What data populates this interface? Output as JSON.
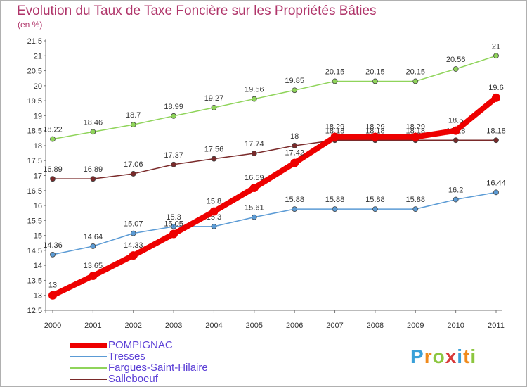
{
  "title": "Evolution du Taux de Taxe Foncière sur les Propriétés Bâties",
  "unit": "(en %)",
  "logo": {
    "text": "Proxiti",
    "letters": [
      "P",
      "r",
      "o",
      "x",
      "i",
      "t",
      "i"
    ],
    "colors": [
      "#3aa0d8",
      "#f08a1c",
      "#8cc63f",
      "#d83a3a",
      "#3aa0d8",
      "#f08a1c",
      "#8cc63f"
    ]
  },
  "chart_data": {
    "type": "line",
    "title": "Evolution du Taux de Taxe Foncière sur les Propriétés Bâties",
    "ylabel": "(en %)",
    "xlabel": "",
    "x": [
      "2000",
      "2001",
      "2002",
      "2003",
      "2004",
      "2005",
      "2006",
      "2007",
      "2008",
      "2009",
      "2010",
      "2011"
    ],
    "ylim": [
      12.5,
      21.5
    ],
    "yticks": [
      12.5,
      13,
      13.5,
      14,
      14.5,
      15,
      15.5,
      16,
      16.5,
      17,
      17.5,
      18,
      18.5,
      19,
      19.5,
      20,
      20.5,
      21,
      21.5
    ],
    "series": [
      {
        "name": "POMPIGNAC",
        "color": "#ee0000",
        "values": [
          13,
          13.65,
          14.33,
          15.05,
          15.8,
          16.59,
          17.42,
          18.29,
          18.29,
          18.29,
          18.5,
          19.6
        ],
        "labels": [
          "13",
          "13.65",
          "14.33",
          "15.05",
          "15.8",
          "16.59",
          "17.42",
          "18.29",
          "18.29",
          "18.29",
          "18.5",
          "19.6"
        ]
      },
      {
        "name": "Tresses",
        "color": "#5b9bd5",
        "values": [
          14.36,
          14.64,
          15.07,
          15.3,
          15.3,
          15.61,
          15.88,
          15.88,
          15.88,
          15.88,
          16.2,
          16.44
        ],
        "labels": [
          "14.36",
          "14.64",
          "15.07",
          "15.3",
          "15.3",
          "15.61",
          "15.88",
          "15.88",
          "15.88",
          "15.88",
          "16.2",
          "16.44"
        ]
      },
      {
        "name": "Fargues-Saint-Hilaire",
        "color": "#8fd45a",
        "values": [
          18.22,
          18.46,
          18.7,
          18.99,
          19.27,
          19.56,
          19.85,
          20.15,
          20.15,
          20.15,
          20.56,
          21
        ],
        "labels": [
          "18.22",
          "18.46",
          "18.7",
          "18.99",
          "19.27",
          "19.56",
          "19.85",
          "20.15",
          "20.15",
          "20.15",
          "20.56",
          "21"
        ]
      },
      {
        "name": "Salleboeuf",
        "color": "#7a2a2a",
        "values": [
          16.89,
          16.89,
          17.06,
          17.37,
          17.56,
          17.74,
          18,
          18.18,
          18.18,
          18.18,
          18.18,
          18.18
        ],
        "labels": [
          "16.89",
          "16.89",
          "17.06",
          "17.37",
          "17.56",
          "17.74",
          "18",
          "18.18",
          "18.18",
          "18.18",
          "18.18",
          "18.18"
        ]
      }
    ],
    "draw_order": [
      "Tresses",
      "Fargues-Saint-Hilaire",
      "Salleboeuf",
      "POMPIGNAC"
    ],
    "legend": [
      "POMPIGNAC",
      "Tresses",
      "Fargues-Saint-Hilaire",
      "Salleboeuf"
    ],
    "legend_position": "bottom-left",
    "grid": false
  }
}
